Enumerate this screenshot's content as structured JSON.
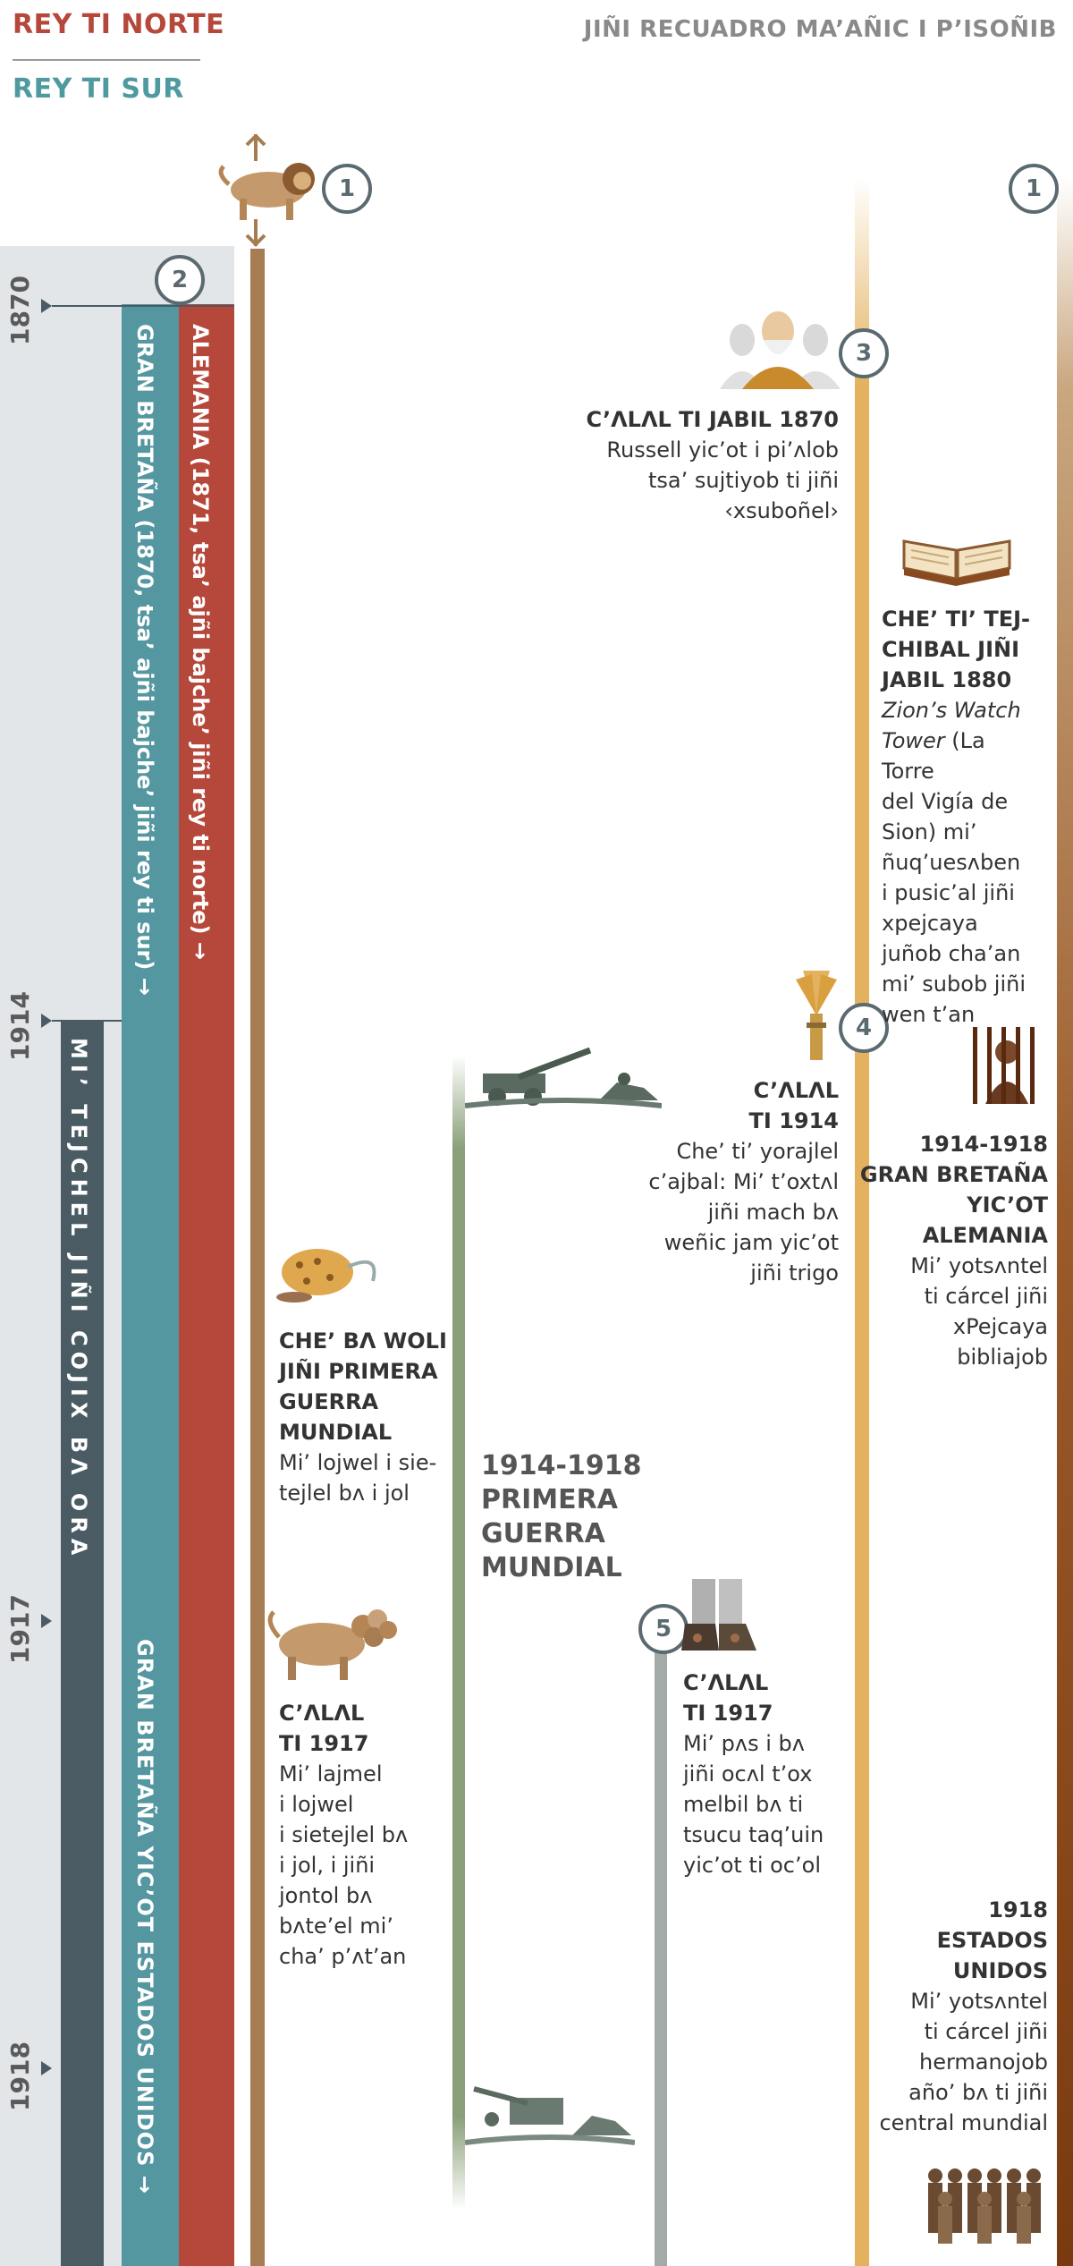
{
  "legend": {
    "north": "REY TI NORTE",
    "south": "REY TI SUR"
  },
  "header": {
    "title": "JIÑI RECUADRO MA’AÑIC I P’ISOÑIB"
  },
  "years": [
    "1870",
    "1914",
    "1917",
    "1918"
  ],
  "bars": {
    "red": "ALEMANIA (1871, tsa’ ajñi bajche’ jiñi rey ti norte) →",
    "teal": "GRAN BRETAÑA (1870, tsa’ ajñi bajche’ jiñi rey ti sur) →",
    "slate": "MI’ TEJCHEL JIÑI COJIX BɅ ORA",
    "teal_lower": "GRAN BRETAÑA YIC’OT ESTADOS UNIDOS →"
  },
  "markers": [
    "1",
    "1",
    "2",
    "3",
    "4",
    "5"
  ],
  "events": {
    "e1870": {
      "title": "C’ɅLɅL TI JABIL 1870",
      "body": [
        "Russell yic’ot i pi’ʌlob",
        "tsa’ sujtiyob ti jiñi",
        "‹xsuboñel›"
      ]
    },
    "e1880": {
      "title": [
        "CHE’ TI’ TEJ-",
        "CHIBAL JIÑI",
        "JABIL 1880"
      ],
      "italic": [
        "Zion’s Watch",
        "Tower"
      ],
      "body": [
        " (La Torre",
        "del Vigía de",
        "Sion) mi’",
        "ñuq’uesʌben",
        "i pusic’al jiñi",
        "xpejcaya",
        "juñob cha’an",
        "mi’ subob jiñi",
        "wen t’an"
      ]
    },
    "e1914": {
      "title": [
        "C’ɅLɅL",
        "TI 1914"
      ],
      "body": [
        "Che’ ti’ yorajlel",
        "c’ajbal: Mi’ t’oxtʌl",
        "jiñi mach bʌ",
        "weñic jam yic’ot",
        "jiñi trigo"
      ]
    },
    "e1914_1918": {
      "title": [
        "1914-1918",
        "GRAN BRETAÑA",
        "YIC’OT",
        "ALEMANIA"
      ],
      "body": [
        "Mi’ yotsʌntel",
        "ti cárcel jiñi",
        "xPejcaya",
        "bibliajob"
      ]
    },
    "wwi_before": {
      "title": [
        "CHE’ BɅ WOLI",
        "JIÑI PRIMERA",
        "GUERRA",
        "MUNDIAL"
      ],
      "body": [
        "Mi’ lojwel i sie-",
        "tejlel bʌ i jol"
      ]
    },
    "wwi": {
      "title": [
        "1914-1918",
        "PRIMERA GUERRA",
        "MUNDIAL"
      ]
    },
    "e1917a": {
      "title": [
        "C’ɅLɅL",
        "TI 1917"
      ],
      "body": [
        "Mi’ lajmel",
        "i lojwel",
        "i sietejlel bʌ",
        "i jol, i jiñi",
        "jontol bʌ",
        "bʌte’el mi’",
        "cha’ p’ʌt’an"
      ]
    },
    "e1917b": {
      "title": [
        "C’ɅLɅL",
        "TI 1917"
      ],
      "body": [
        "Mi’ pʌs i bʌ",
        "jiñi ocʌl t’ox",
        "melbil bʌ ti",
        "tsucu taq’uin",
        "yic’ot ti oc’ol"
      ]
    },
    "e1918": {
      "title": [
        "1918",
        "ESTADOS",
        "UNIDOS"
      ],
      "body": [
        "Mi’ yotsʌntel",
        "ti cárcel jiñi",
        "hermanojob",
        "año’ bʌ ti jiñi",
        "central mundial"
      ]
    }
  },
  "colors": {
    "north": "#b5473b",
    "south": "#5497a1",
    "slate": "#4a5b64",
    "brown": "#a67c52",
    "gold": "#e4b25e",
    "green": "#8aa07a",
    "grayline": "#a3aaa8"
  },
  "icons": [
    "lion-icon",
    "russell-portrait-icon",
    "open-book-icon",
    "wheat-bundle-icon",
    "prisoner-icon",
    "leopard-icon",
    "four-headed-leopard-icon",
    "soldiers-icon",
    "iron-clay-feet-icon",
    "group-of-men-icon"
  ]
}
